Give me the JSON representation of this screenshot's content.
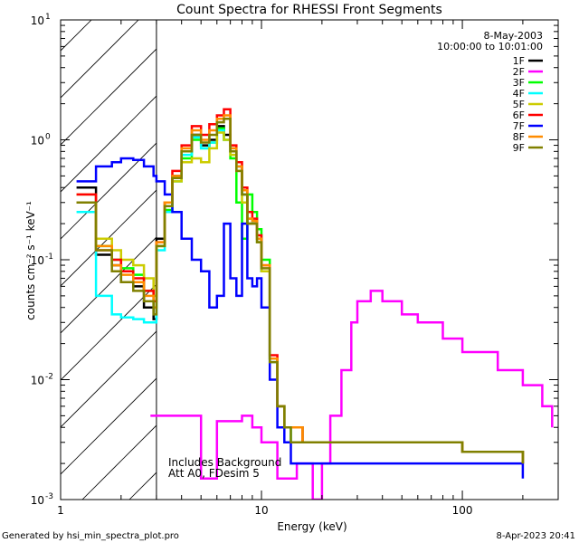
{
  "chart_data": {
    "type": "line",
    "title": "Count Spectra for RHESSI Front Segments",
    "xlabel": "Energy (keV)",
    "ylabel": "counts cm⁻² s⁻¹ keV⁻¹",
    "x_scale": "log",
    "y_scale": "log",
    "xlim": [
      1,
      300
    ],
    "ylim": [
      0.001,
      10
    ],
    "x_ticks": [
      {
        "value": 1,
        "label": "1"
      },
      {
        "value": 10,
        "label": "10"
      },
      {
        "value": 100,
        "label": "100"
      }
    ],
    "y_ticks": [
      {
        "value": 10,
        "label": "10",
        "exp": "1"
      },
      {
        "value": 1,
        "label": "10",
        "exp": "0"
      },
      {
        "value": 0.1,
        "label": "10",
        "exp": "-1"
      },
      {
        "value": 0.01,
        "label": "10",
        "exp": "-2"
      },
      {
        "value": 0.001,
        "label": "10",
        "exp": "-3"
      }
    ],
    "hatched_region": [
      1,
      3
    ],
    "date": "8-May-2003",
    "time_range": "10:00:00 to 10:01:00",
    "annotations": [
      "Includes Background",
      "Att A0, FDesim 5"
    ],
    "series": [
      {
        "name": "1F",
        "color": "#000000",
        "x": [
          1.2,
          1.5,
          1.8,
          2.0,
          2.3,
          2.6,
          2.9,
          3.0,
          3.3,
          3.6,
          4.0,
          4.5,
          5.0,
          5.5,
          6.0,
          6.5,
          7.0,
          7.5,
          8.0,
          8.5,
          9.0,
          9.5,
          10.0,
          11.0,
          12.0,
          13.0,
          14.0,
          16.0,
          20.0,
          30.0,
          50.0,
          100.0,
          200.0
        ],
        "y": [
          0.4,
          0.11,
          0.09,
          0.065,
          0.06,
          0.04,
          0.032,
          0.15,
          0.3,
          0.5,
          0.8,
          1.1,
          0.9,
          1.0,
          1.3,
          1.1,
          0.8,
          0.6,
          0.35,
          0.2,
          0.2,
          0.15,
          0.08,
          0.015,
          0.006,
          0.004,
          0.004,
          0.003,
          0.003,
          0.003,
          0.003,
          0.0025,
          0.002
        ]
      },
      {
        "name": "2F",
        "color": "#ff00ff",
        "x": [
          2.8,
          3.0,
          5.0,
          6.0,
          7.0,
          8.0,
          9.0,
          10.0,
          12.0,
          15.0,
          18.0,
          20.0,
          22.0,
          25.0,
          28.0,
          30.0,
          35.0,
          40.0,
          50.0,
          60.0,
          80.0,
          100.0,
          150.0,
          200.0,
          250.0,
          280.0
        ],
        "y": [
          0.005,
          0.005,
          0.0015,
          0.0045,
          0.0045,
          0.005,
          0.004,
          0.003,
          0.0015,
          0.002,
          0.001,
          0.002,
          0.005,
          0.012,
          0.03,
          0.045,
          0.055,
          0.045,
          0.035,
          0.03,
          0.022,
          0.017,
          0.012,
          0.009,
          0.006,
          0.004
        ]
      },
      {
        "name": "3F",
        "color": "#00ff00",
        "x": [
          1.2,
          1.5,
          1.8,
          2.0,
          2.3,
          2.6,
          2.9,
          3.0,
          3.3,
          3.6,
          4.0,
          4.5,
          5.0,
          5.5,
          6.0,
          6.5,
          7.0,
          7.5,
          8.0,
          8.5,
          9.0,
          9.5,
          10.0,
          11.0,
          12.0,
          13.0,
          14.0,
          16.0,
          20.0,
          30.0,
          50.0,
          100.0,
          200.0
        ],
        "y": [
          0.3,
          0.13,
          0.1,
          0.085,
          0.075,
          0.055,
          0.04,
          0.13,
          0.26,
          0.45,
          0.7,
          1.0,
          0.85,
          0.95,
          1.25,
          1.0,
          0.7,
          0.3,
          0.15,
          0.35,
          0.25,
          0.18,
          0.1,
          0.015,
          0.006,
          0.004,
          0.003,
          0.003,
          0.003,
          0.003,
          0.003,
          0.0025,
          0.002
        ]
      },
      {
        "name": "4F",
        "color": "#00ffff",
        "x": [
          1.2,
          1.5,
          1.8,
          2.0,
          2.3,
          2.6,
          2.9,
          3.0,
          3.3,
          3.6,
          4.0,
          4.5,
          5.0,
          5.5,
          6.0,
          6.5,
          7.0,
          7.5,
          8.0,
          8.5,
          9.0,
          9.5,
          10.0,
          11.0,
          12.0,
          13.0,
          14.0,
          16.0,
          20.0,
          30.0,
          50.0,
          100.0,
          200.0
        ],
        "y": [
          0.25,
          0.05,
          0.035,
          0.033,
          0.032,
          0.03,
          0.03,
          0.12,
          0.25,
          0.45,
          0.75,
          1.05,
          0.85,
          0.95,
          1.2,
          1.0,
          0.85,
          0.6,
          0.35,
          0.22,
          0.2,
          0.14,
          0.08,
          0.014,
          0.006,
          0.004,
          0.003,
          0.003,
          0.003,
          0.003,
          0.003,
          0.0025,
          0.002
        ]
      },
      {
        "name": "5F",
        "color": "#cccc00",
        "x": [
          1.2,
          1.5,
          1.8,
          2.0,
          2.3,
          2.6,
          2.9,
          3.0,
          3.3,
          3.6,
          4.0,
          4.5,
          5.0,
          5.5,
          6.0,
          6.5,
          7.0,
          7.5,
          8.0,
          8.5,
          9.0,
          9.5,
          10.0,
          11.0,
          12.0,
          13.0,
          14.0,
          16.0,
          20.0,
          30.0,
          50.0,
          100.0,
          200.0
        ],
        "y": [
          0.35,
          0.15,
          0.12,
          0.1,
          0.09,
          0.07,
          0.05,
          0.13,
          0.3,
          0.45,
          0.65,
          0.7,
          0.65,
          0.85,
          1.15,
          1.0,
          0.75,
          0.55,
          0.3,
          0.2,
          0.2,
          0.14,
          0.08,
          0.015,
          0.006,
          0.004,
          0.004,
          0.003,
          0.003,
          0.003,
          0.003,
          0.0025,
          0.002
        ]
      },
      {
        "name": "6F",
        "color": "#ff0000",
        "x": [
          1.2,
          1.5,
          1.8,
          2.0,
          2.3,
          2.6,
          2.9,
          3.0,
          3.3,
          3.6,
          4.0,
          4.5,
          5.0,
          5.5,
          6.0,
          6.5,
          7.0,
          7.5,
          8.0,
          8.5,
          9.0,
          9.5,
          10.0,
          11.0,
          12.0,
          13.0,
          14.0,
          16.0,
          20.0,
          30.0,
          50.0,
          100.0,
          200.0
        ],
        "y": [
          0.35,
          0.12,
          0.1,
          0.08,
          0.07,
          0.055,
          0.045,
          0.14,
          0.3,
          0.55,
          0.9,
          1.3,
          1.1,
          1.35,
          1.6,
          1.8,
          0.9,
          0.65,
          0.4,
          0.25,
          0.22,
          0.16,
          0.09,
          0.016,
          0.006,
          0.004,
          0.004,
          0.003,
          0.003,
          0.003,
          0.003,
          0.0025,
          0.002
        ]
      },
      {
        "name": "7F",
        "color": "#0000ff",
        "x": [
          1.2,
          1.5,
          1.8,
          2.0,
          2.3,
          2.6,
          2.9,
          3.0,
          3.3,
          3.6,
          4.0,
          4.5,
          5.0,
          5.5,
          6.0,
          6.5,
          7.0,
          7.5,
          8.0,
          8.5,
          9.0,
          9.5,
          10.0,
          11.0,
          12.0,
          13.0,
          14.0,
          16.0,
          20.0,
          30.0,
          50.0,
          100.0,
          200.0
        ],
        "y": [
          0.45,
          0.6,
          0.65,
          0.7,
          0.68,
          0.6,
          0.5,
          0.45,
          0.35,
          0.25,
          0.15,
          0.1,
          0.08,
          0.04,
          0.05,
          0.2,
          0.07,
          0.05,
          0.2,
          0.07,
          0.06,
          0.07,
          0.04,
          0.01,
          0.004,
          0.003,
          0.002,
          0.002,
          0.002,
          0.002,
          0.002,
          0.002,
          0.0015
        ]
      },
      {
        "name": "8F",
        "color": "#ff8c00",
        "x": [
          1.2,
          1.5,
          1.8,
          2.0,
          2.3,
          2.6,
          2.9,
          3.0,
          3.3,
          3.6,
          4.0,
          4.5,
          5.0,
          5.5,
          6.0,
          6.5,
          7.0,
          7.5,
          8.0,
          8.5,
          9.0,
          9.5,
          10.0,
          11.0,
          12.0,
          13.0,
          14.0,
          16.0,
          20.0,
          30.0,
          50.0,
          100.0,
          200.0
        ],
        "y": [
          0.3,
          0.13,
          0.09,
          0.075,
          0.065,
          0.05,
          0.04,
          0.14,
          0.3,
          0.5,
          0.85,
          1.2,
          1.0,
          1.2,
          1.5,
          1.6,
          0.85,
          0.6,
          0.38,
          0.22,
          0.21,
          0.15,
          0.09,
          0.015,
          0.006,
          0.004,
          0.004,
          0.003,
          0.003,
          0.003,
          0.003,
          0.0025,
          0.002
        ]
      },
      {
        "name": "9F",
        "color": "#808000",
        "x": [
          1.2,
          1.5,
          1.8,
          2.0,
          2.3,
          2.6,
          2.9,
          3.0,
          3.3,
          3.6,
          4.0,
          4.5,
          5.0,
          5.5,
          6.0,
          6.5,
          7.0,
          7.5,
          8.0,
          8.5,
          9.0,
          9.5,
          10.0,
          11.0,
          12.0,
          13.0,
          14.0,
          16.0,
          20.0,
          30.0,
          50.0,
          100.0,
          200.0
        ],
        "y": [
          0.3,
          0.12,
          0.08,
          0.065,
          0.055,
          0.045,
          0.035,
          0.13,
          0.28,
          0.48,
          0.8,
          1.1,
          0.95,
          1.1,
          1.4,
          1.5,
          0.8,
          0.55,
          0.35,
          0.2,
          0.2,
          0.14,
          0.085,
          0.014,
          0.006,
          0.004,
          0.003,
          0.003,
          0.003,
          0.003,
          0.003,
          0.0025,
          0.002
        ]
      }
    ]
  },
  "footer": {
    "left": "Generated by hsi_min_spectra_plot.pro",
    "right": "8-Apr-2023 20:41"
  }
}
